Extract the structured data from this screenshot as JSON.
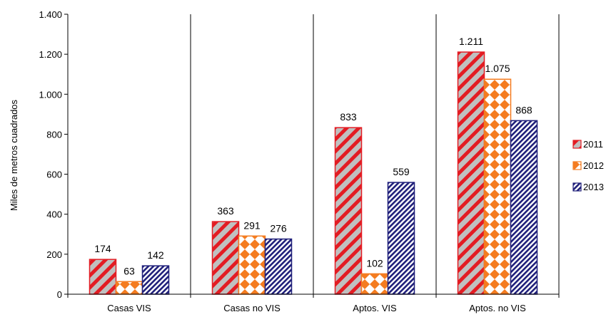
{
  "chart_data": {
    "type": "bar",
    "title": "",
    "xlabel": "",
    "ylabel": "Miles de metros cuadrados",
    "ylim": [
      0,
      1400
    ],
    "yticks": [
      0,
      200,
      400,
      600,
      800,
      1000,
      1200,
      1400
    ],
    "ytick_labels": [
      "0",
      "200",
      "400",
      "600",
      "800",
      "1.000",
      "1.200",
      "1.400"
    ],
    "grid": false,
    "legend_position": "right",
    "categories": [
      "Casas VIS",
      "Casas no VIS",
      "Aptos. VIS",
      "Aptos. no VIS"
    ],
    "series": [
      {
        "name": "2011",
        "values": [
          174,
          363,
          833,
          1211
        ],
        "labels": [
          "174",
          "363",
          "833",
          "1.211"
        ],
        "color": "#e31c23",
        "fill": "#c0c0c0",
        "pattern": "diagonal-stripes"
      },
      {
        "name": "2012",
        "values": [
          63,
          291,
          102,
          1075
        ],
        "labels": [
          "63",
          "291",
          "102",
          "1.075"
        ],
        "color": "#f47c20",
        "fill": "#ffffff",
        "pattern": "diamond-checker"
      },
      {
        "name": "2013",
        "values": [
          142,
          276,
          559,
          868
        ],
        "labels": [
          "142",
          "276",
          "559",
          "868"
        ],
        "color": "#1f1f7a",
        "fill": "#ffffff",
        "pattern": "fine-diagonal-stripes"
      }
    ]
  }
}
